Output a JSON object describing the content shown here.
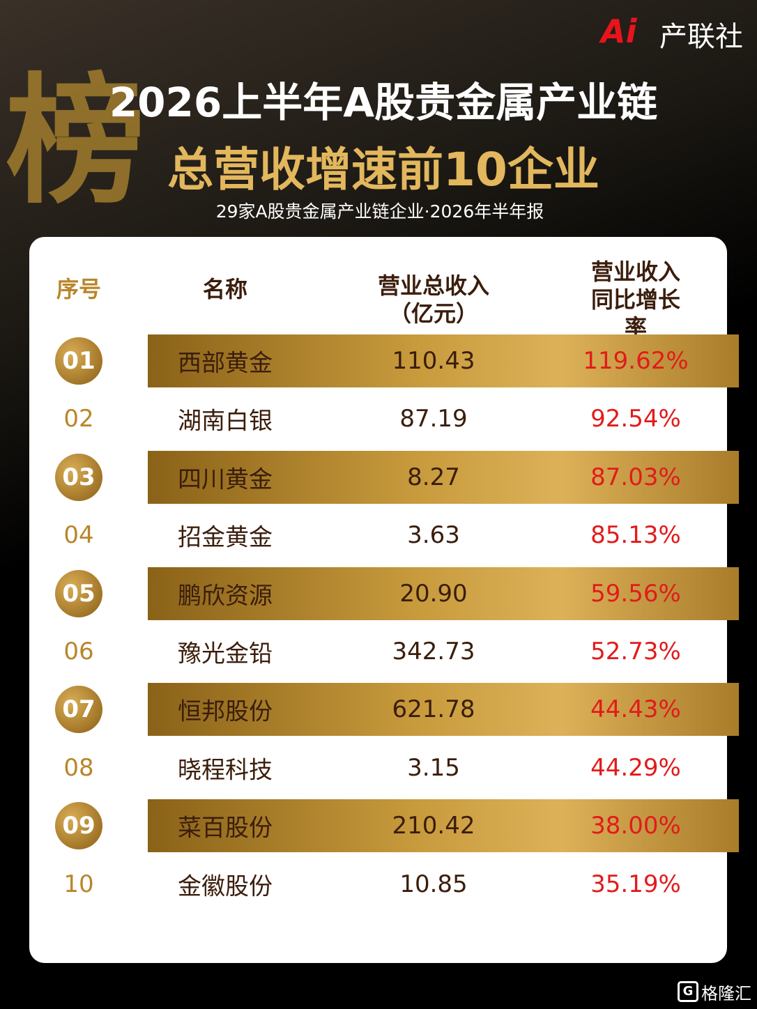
{
  "logo": {
    "mark": "Ai",
    "name": "产联社"
  },
  "header": {
    "badge": "榜",
    "title_line1": "2026上半年A股贵金属产业链",
    "title_line2": "总营收增速前10企业",
    "subtitle": "29家A股贵金属产业链企业·2026年半年报"
  },
  "table": {
    "columns": [
      [
        "序号"
      ],
      [
        "名称"
      ],
      [
        "营业总收入",
        "（亿元）"
      ],
      [
        "营业收入",
        "同比增长率"
      ]
    ],
    "rows": [
      [
        "01",
        "西部黄金",
        "110.43",
        "119.62%"
      ],
      [
        "02",
        "湖南白银",
        "87.19",
        "92.54%"
      ],
      [
        "03",
        "四川黄金",
        "8.27",
        "87.03%"
      ],
      [
        "04",
        "招金黄金",
        "3.63",
        "85.13%"
      ],
      [
        "05",
        "鹏欣资源",
        "20.90",
        "59.56%"
      ],
      [
        "06",
        "豫光金铅",
        "342.73",
        "52.73%"
      ],
      [
        "07",
        "恒邦股份",
        "621.78",
        "44.43%"
      ],
      [
        "08",
        "晓程科技",
        "3.15",
        "44.29%"
      ],
      [
        "09",
        "菜百股份",
        "210.42",
        "38.00%"
      ],
      [
        "10",
        "金徽股份",
        "10.85",
        "35.19%"
      ]
    ]
  },
  "watermark": "格隆汇"
}
